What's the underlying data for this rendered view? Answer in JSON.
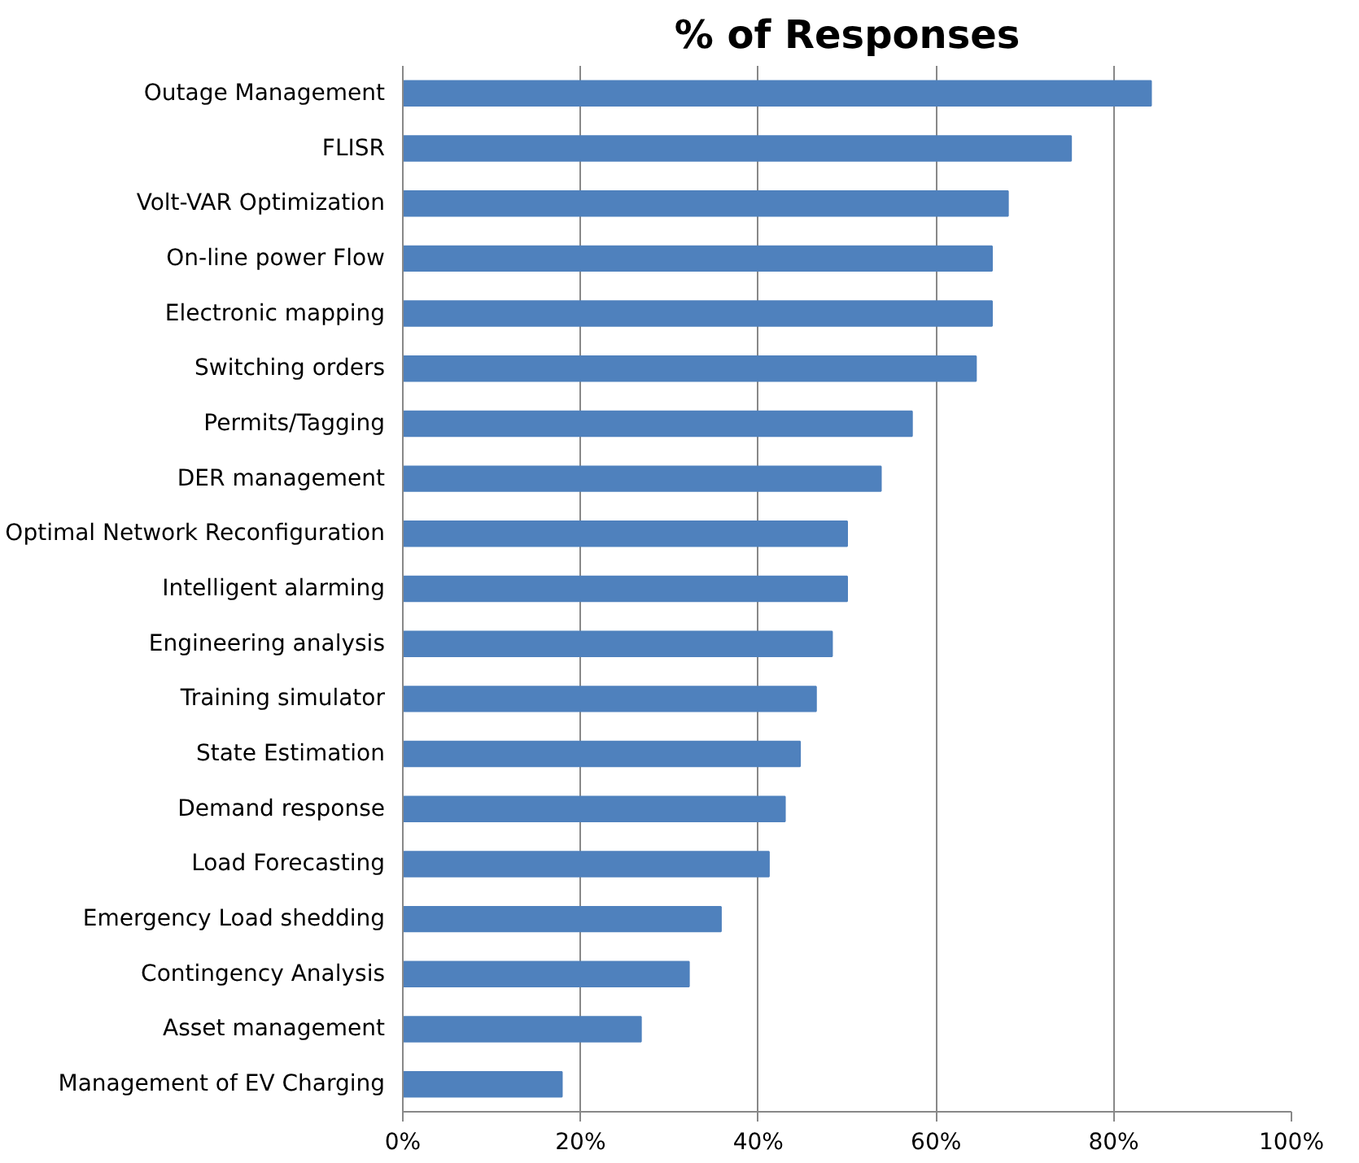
{
  "chart_data": {
    "type": "bar",
    "orientation": "horizontal",
    "title": "% of Responses",
    "categories": [
      "Outage Management",
      "FLISR",
      "Volt-VAR Optimization",
      "On-line power Flow",
      "Electronic mapping",
      "Switching orders",
      "Permits/Tagging",
      "DER management",
      "Optimal Network Reconfiguration",
      "Intelligent alarming",
      "Engineering analysis",
      "Training simulator",
      "State Estimation",
      "Demand response",
      "Load Forecasting",
      "Emergency Load shedding",
      "Contingency Analysis",
      "Asset management",
      "Management of EV Charging"
    ],
    "values": [
      84.2,
      75.2,
      68.1,
      66.3,
      66.3,
      64.5,
      57.3,
      53.8,
      50,
      50,
      48.3,
      46.5,
      44.7,
      43,
      41.2,
      35.8,
      32.2,
      26.8,
      17.9
    ],
    "color": "#4f81bd",
    "xlim": [
      0,
      100
    ],
    "xticks": [
      {
        "value": 0,
        "label": "0%"
      },
      {
        "value": 20,
        "label": "20%"
      },
      {
        "value": 40,
        "label": "40%"
      },
      {
        "value": 60,
        "label": "60%"
      },
      {
        "value": 80,
        "label": "80%"
      },
      {
        "value": 100,
        "label": "100%"
      }
    ],
    "grid": "x"
  }
}
